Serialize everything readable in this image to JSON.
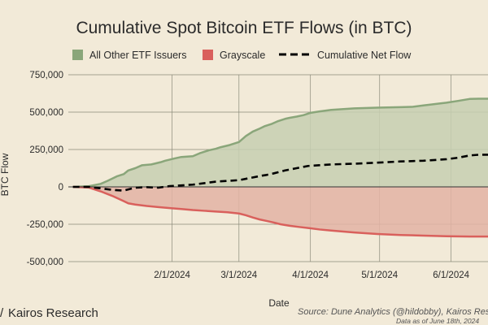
{
  "chart_data": {
    "type": "area",
    "title": "Cumulative Spot Bitcoin ETF Flows (in BTC)",
    "xlabel": "Date",
    "ylabel": "BTC Flow",
    "ylim": [
      -500000,
      750000
    ],
    "yticks": [
      {
        "value": 750000,
        "label": "750,000"
      },
      {
        "value": 500000,
        "label": "500,000"
      },
      {
        "value": 250000,
        "label": "250,000"
      },
      {
        "value": 0,
        "label": "0"
      },
      {
        "value": -250000,
        "label": "-250,000"
      },
      {
        "value": -500000,
        "label": "-500,000"
      }
    ],
    "xrange_days": [
      -14,
      168
    ],
    "xticks": [
      {
        "day": 31,
        "label": "2/1/2024"
      },
      {
        "day": 60,
        "label": "3/1/2024"
      },
      {
        "day": 91,
        "label": "4/1/2024"
      },
      {
        "day": 121,
        "label": "5/1/2024"
      },
      {
        "day": 152,
        "label": "6/1/2024"
      }
    ],
    "series": [
      {
        "name": "All Other ETF Issuers",
        "color": "#8aa67a",
        "fill": "#c7cfb1",
        "x_days": [
          -12,
          -5,
          0,
          3,
          7,
          10,
          12,
          15,
          18,
          22,
          26,
          28,
          32,
          35,
          40,
          43,
          47,
          50,
          52,
          56,
          60,
          63,
          66,
          69,
          71,
          74,
          77,
          80,
          82,
          85,
          88,
          91,
          95,
          100,
          110,
          120,
          130,
          135,
          140,
          143,
          147,
          150,
          155,
          160,
          164,
          168
        ],
        "values": [
          0,
          5000,
          20000,
          40000,
          70000,
          85000,
          110000,
          125000,
          145000,
          150000,
          165000,
          175000,
          190000,
          200000,
          205000,
          225000,
          245000,
          255000,
          265000,
          280000,
          300000,
          340000,
          370000,
          390000,
          405000,
          420000,
          440000,
          455000,
          462000,
          470000,
          480000,
          495000,
          505000,
          515000,
          525000,
          530000,
          533000,
          535000,
          545000,
          550000,
          558000,
          563000,
          575000,
          588000,
          590000,
          590000
        ]
      },
      {
        "name": "Grayscale",
        "color": "#d9605c",
        "fill": "#e3b3a4",
        "x_days": [
          -12,
          -5,
          0,
          5,
          10,
          12,
          15,
          20,
          25,
          30,
          35,
          40,
          45,
          50,
          55,
          60,
          63,
          66,
          69,
          72,
          75,
          78,
          82,
          86,
          90,
          95,
          100,
          110,
          120,
          130,
          140,
          150,
          160,
          168
        ],
        "values": [
          0,
          -5000,
          -30000,
          -60000,
          -95000,
          -110000,
          -118000,
          -128000,
          -135000,
          -142000,
          -148000,
          -155000,
          -160000,
          -165000,
          -170000,
          -178000,
          -190000,
          -205000,
          -218000,
          -228000,
          -238000,
          -250000,
          -260000,
          -268000,
          -275000,
          -285000,
          -292000,
          -305000,
          -315000,
          -322000,
          -326000,
          -330000,
          -332000,
          -332000
        ]
      },
      {
        "name": "Cumulative Net Flow",
        "color": "#000000",
        "style": "dashed",
        "x_days": [
          -12,
          -5,
          0,
          5,
          10,
          15,
          20,
          25,
          30,
          35,
          40,
          45,
          50,
          55,
          60,
          65,
          70,
          72,
          75,
          80,
          85,
          90,
          95,
          100,
          110,
          120,
          130,
          140,
          150,
          155,
          160,
          164,
          168
        ],
        "values": [
          0,
          0,
          -10000,
          -20000,
          -25000,
          -5000,
          -2000,
          -5000,
          5000,
          10000,
          15000,
          25000,
          35000,
          40000,
          45000,
          60000,
          75000,
          80000,
          90000,
          110000,
          125000,
          140000,
          145000,
          150000,
          155000,
          162000,
          170000,
          175000,
          185000,
          195000,
          210000,
          215000,
          215000
        ]
      }
    ]
  },
  "legend": [
    {
      "label": "All Other ETF Issuers",
      "color": "#8aa67a",
      "kind": "swatch"
    },
    {
      "label": "Grayscale",
      "color": "#d9605c",
      "kind": "swatch"
    },
    {
      "label": "Cumulative Net Flow",
      "color": "#000000",
      "kind": "dash"
    }
  ],
  "footer": {
    "brand": "Kairos Research",
    "source": "Source: Dune Analytics (@hildobby), Kairos Research",
    "note": "Data as of June 18th, 2024"
  },
  "colors": {
    "background": "#f2ead8",
    "grid": "#8a8a7a",
    "zero_line": "#333333"
  }
}
